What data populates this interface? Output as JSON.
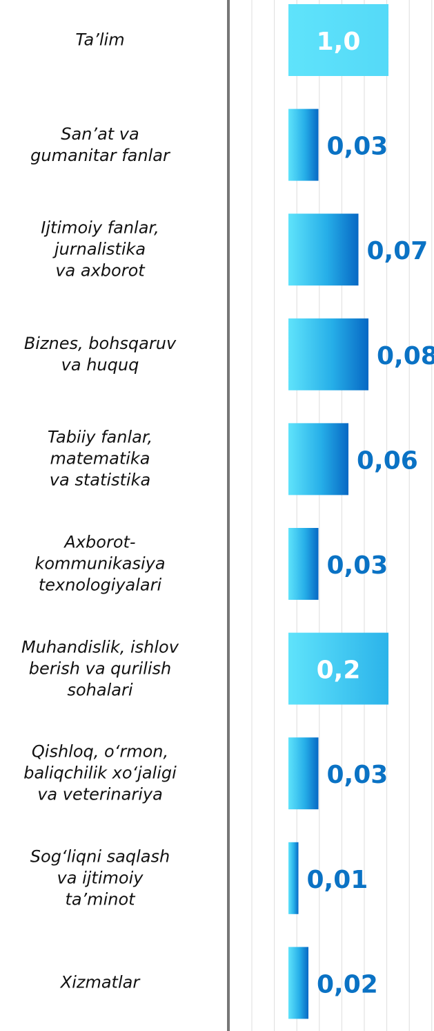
{
  "chart_data": {
    "type": "bar",
    "orientation": "horizontal",
    "categories": [
      "Ta’lim",
      "San’at va\ngumanitar fanlar",
      "Ijtimoiy fanlar,\njurnalistika\nva axborot",
      "Biznes, bohsqaruv\nva huquq",
      "Tabiiy fanlar,\nmatematika\nva statistika",
      "Axborot-\nkommunikasiya\ntexnologiyalari",
      "Muhandislik, ishlov\nberish va qurilish\nsohalari",
      "Qishloq, o‘rmon,\nbaliqchilik xo‘jaligi\nva veterinariya",
      "Sog‘liqni saqlash\nva ijtimoiy\nta’minot",
      "Xizmatlar"
    ],
    "values": [
      1.0,
      0.03,
      0.07,
      0.08,
      0.06,
      0.03,
      0.2,
      0.03,
      0.01,
      0.02
    ],
    "value_labels": [
      "1,0",
      "0,03",
      "0,07",
      "0,08",
      "0,06",
      "0,03",
      "0,2",
      "0,03",
      "0,01",
      "0,02"
    ],
    "color": "#0a72c4",
    "xlim": [
      0,
      0.1
    ]
  }
}
